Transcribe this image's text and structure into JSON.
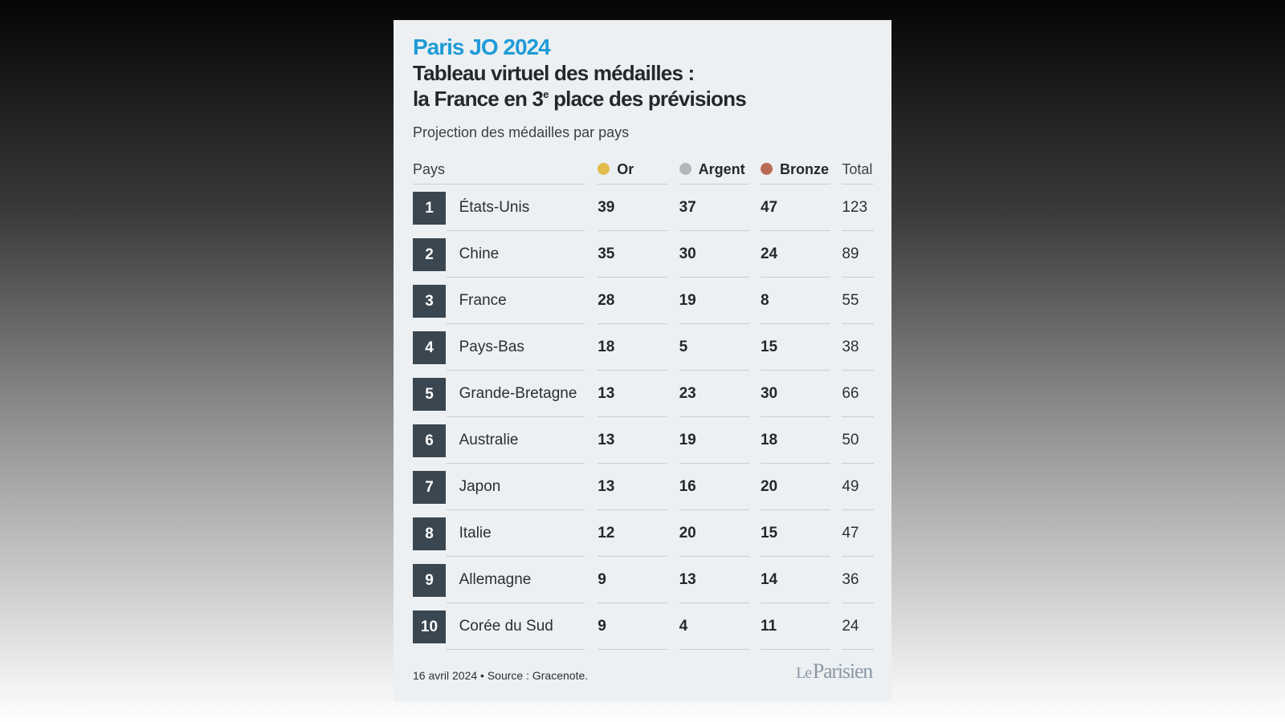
{
  "header": {
    "kicker": "Paris JO 2024",
    "headline_line1": "Tableau virtuel des médailles :",
    "headline_line2_pre": "la France en 3",
    "headline_line2_sup": "e",
    "headline_line2_post": " place des prévisions",
    "subtitle": "Projection des médailles par pays"
  },
  "colors": {
    "kicker": "#1f9bd7",
    "rank_badge": "#3a4650",
    "gold": "#e2bd4c",
    "silver": "#b3b7ba",
    "bronze": "#b96a55"
  },
  "chart_data": {
    "type": "table",
    "columns": [
      "Pays",
      "Or",
      "Argent",
      "Bronze",
      "Total"
    ],
    "rows": [
      {
        "rank": "1",
        "country": "États-Unis",
        "gold": "39",
        "silver": "37",
        "bronze": "47",
        "total": "123"
      },
      {
        "rank": "2",
        "country": "Chine",
        "gold": "35",
        "silver": "30",
        "bronze": "24",
        "total": "89"
      },
      {
        "rank": "3",
        "country": "France",
        "gold": "28",
        "silver": "19",
        "bronze": "8",
        "total": "55"
      },
      {
        "rank": "4",
        "country": "Pays-Bas",
        "gold": "18",
        "silver": "5",
        "bronze": "15",
        "total": "38"
      },
      {
        "rank": "5",
        "country": "Grande-Bretagne",
        "gold": "13",
        "silver": "23",
        "bronze": "30",
        "total": "66"
      },
      {
        "rank": "6",
        "country": "Australie",
        "gold": "13",
        "silver": "19",
        "bronze": "18",
        "total": "50"
      },
      {
        "rank": "7",
        "country": "Japon",
        "gold": "13",
        "silver": "16",
        "bronze": "20",
        "total": "49"
      },
      {
        "rank": "8",
        "country": "Italie",
        "gold": "12",
        "silver": "20",
        "bronze": "15",
        "total": "47"
      },
      {
        "rank": "9",
        "country": "Allemagne",
        "gold": "9",
        "silver": "13",
        "bronze": "14",
        "total": "36"
      },
      {
        "rank": "10",
        "country": "Corée du Sud",
        "gold": "9",
        "silver": "4",
        "bronze": "11",
        "total": "24"
      }
    ]
  },
  "footer": {
    "source": "16 avril 2024 • Source : Gracenote.",
    "logo_le": "Le",
    "logo_name": "Parisien"
  }
}
